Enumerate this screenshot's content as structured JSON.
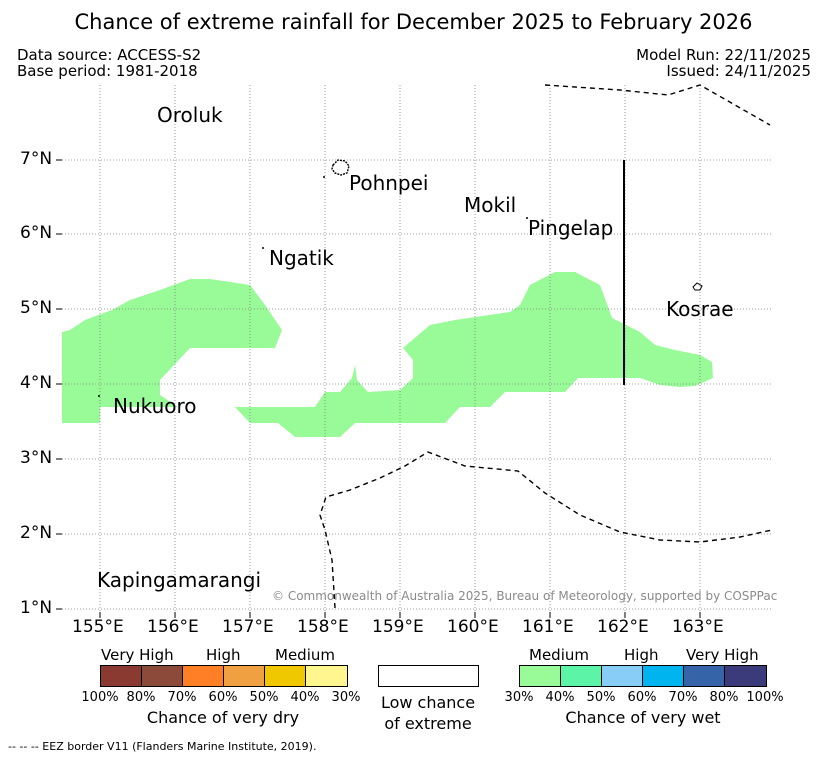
{
  "title": "Chance of extreme rainfall for December 2025 to February 2026",
  "header": {
    "data_source": "Data source: ACCESS-S2",
    "base_period": "Base period: 1981-2018",
    "model_run": "Model Run: 22/11/2025",
    "issued": "Issued: 24/11/2025"
  },
  "map": {
    "lat_labels": [
      "7°N",
      "6°N",
      "5°N",
      "4°N",
      "3°N",
      "2°N",
      "1°N"
    ],
    "lon_labels": [
      "155°E",
      "156°E",
      "157°E",
      "158°E",
      "159°E",
      "160°E",
      "161°E",
      "162°E",
      "163°E"
    ],
    "places": [
      "Oroluk",
      "Pohnpei",
      "Mokil",
      "Pingelap",
      "Ngatik",
      "Kosrae",
      "Nukuoro",
      "Kapingamarangi"
    ],
    "copyright": "© Commonwealth of Australia 2025, Bureau of Meteorology, supported by COSPPac",
    "wet_region_category": "30%",
    "colors": {
      "wet_30": "#98fb98",
      "grid": "#808080"
    }
  },
  "legend": {
    "dry": {
      "categories": [
        "Very High",
        "High",
        "Medium"
      ],
      "colors": [
        "#8b3a32",
        "#8b4a3a",
        "#ff7f27",
        "#f0a040",
        "#f0c800",
        "#fff68f"
      ],
      "percent_labels": [
        "100%",
        "80%",
        "70%",
        "60%",
        "50%",
        "40%",
        "30%"
      ],
      "title": "Chance of very dry"
    },
    "low": {
      "line1": "Low chance",
      "line2": "of extreme"
    },
    "wet": {
      "categories": [
        "Medium",
        "High",
        "Very High"
      ],
      "colors": [
        "#98fb98",
        "#5cf5a8",
        "#88cdf8",
        "#00b4f0",
        "#3565a8",
        "#3b3a7a"
      ],
      "percent_labels": [
        "30%",
        "40%",
        "50%",
        "60%",
        "70%",
        "80%",
        "100%"
      ],
      "title": "Chance of very wet"
    }
  },
  "footnote": "-- -- -- EEZ border V11 (Flanders Marine Institute, 2019)."
}
